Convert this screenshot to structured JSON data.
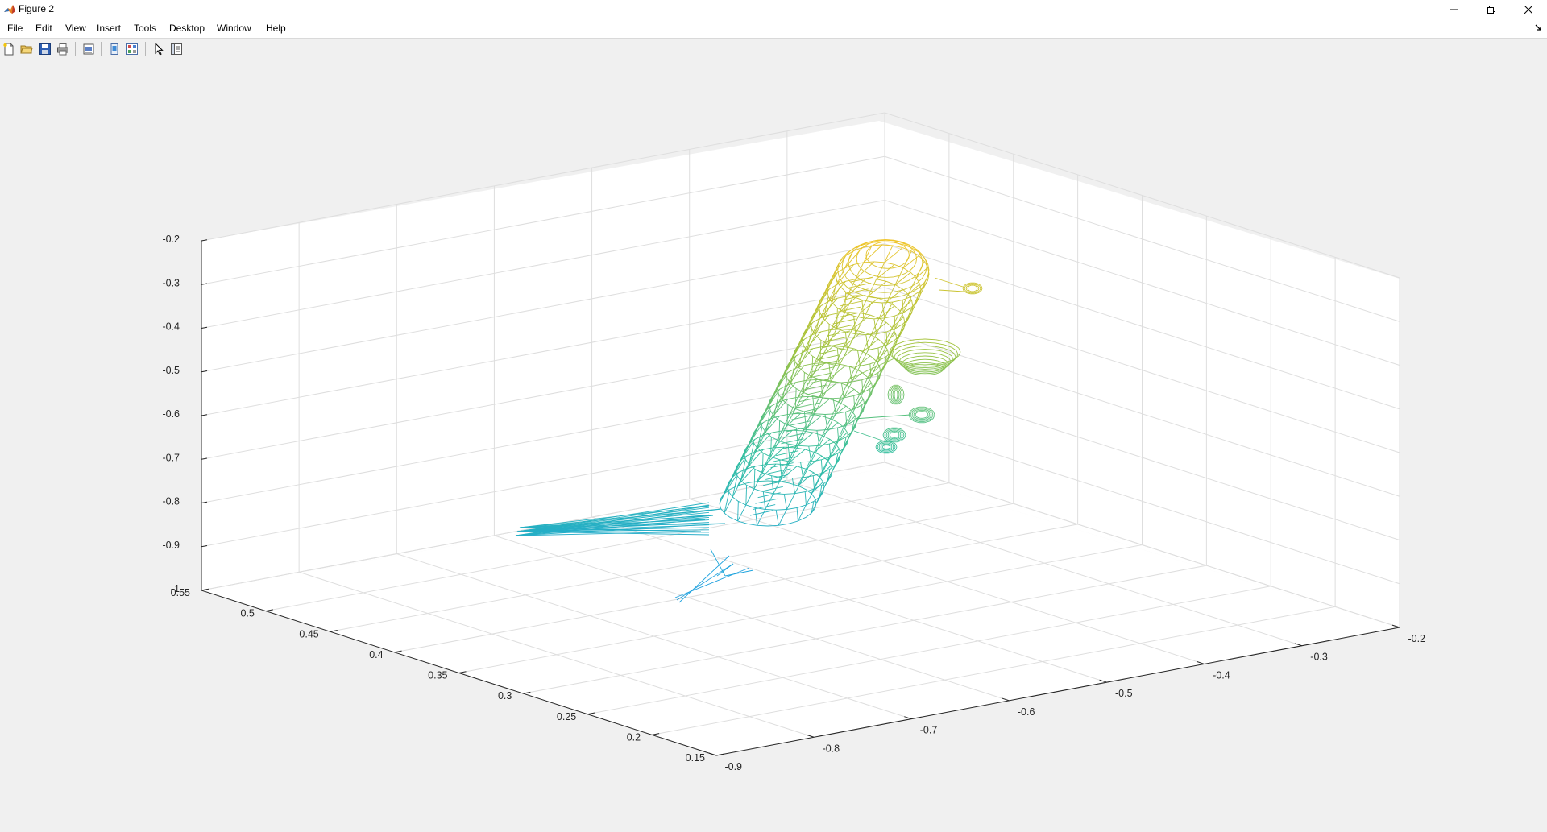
{
  "window": {
    "title": "Figure 2",
    "controls": [
      "minimize-icon",
      "restore-icon",
      "close-icon"
    ]
  },
  "menu": {
    "items": [
      "File",
      "Edit",
      "View",
      "Insert",
      "Tools",
      "Desktop",
      "Window",
      "Help"
    ]
  },
  "toolbar": {
    "buttons": [
      "new-figure-icon",
      "open-file-icon",
      "save-icon",
      "print-icon",
      "print-preview-icon",
      "link-plot-icon",
      "insert-colorbar-icon",
      "edit-plot-icon",
      "property-inspector-icon"
    ]
  },
  "chart_data": {
    "type": "mesh-3d",
    "title": "",
    "xlabel": "",
    "ylabel": "",
    "zlabel": "",
    "x_ticks": [
      "-0.9",
      "-0.8",
      "-0.7",
      "-0.6",
      "-0.5",
      "-0.4",
      "-0.3",
      "-0.2"
    ],
    "y_ticks": [
      "0.55",
      "0.5",
      "0.45",
      "0.4",
      "0.35",
      "0.3",
      "0.25",
      "0.2",
      "0.15"
    ],
    "z_ticks": [
      "-0.2",
      "-0.3",
      "-0.4",
      "-0.5",
      "-0.6",
      "-0.7",
      "-0.8",
      "-0.9",
      "-1"
    ],
    "xlim": [
      -0.9,
      -0.2
    ],
    "ylim": [
      0.15,
      0.55
    ],
    "zlim": [
      -1,
      -0.2
    ],
    "grid": "on",
    "box": "off",
    "colormap": "parula",
    "colors": {
      "low": "#3e26a8",
      "mid_low": "#1fa4e0",
      "mid": "#2fbea0",
      "mid_high": "#a4c33a",
      "high": "#f5c52a"
    }
  }
}
